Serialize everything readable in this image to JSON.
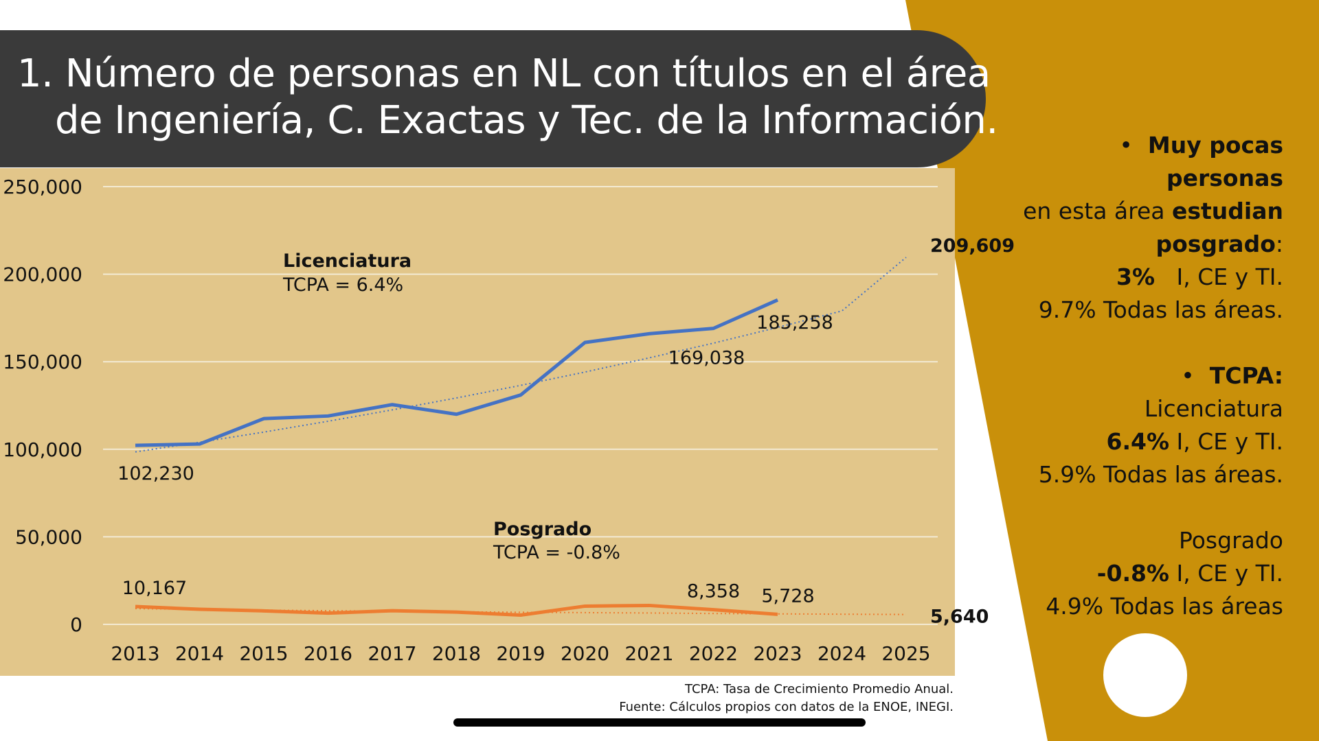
{
  "slide_title": {
    "line1": "1. Número de personas en NL con títulos en el área",
    "line2": "de Ingeniería, C. Exactas y Tec. de la Información."
  },
  "side_panel": {
    "bullet1_bold": "Muy pocas personas",
    "bullet1_line2_prefix": "en esta área ",
    "bullet1_line2_bold": "estudian",
    "bullet1_line3_bold": "posgrado",
    "bullet1_line3_suffix": ":",
    "pct_bold": "3%",
    "pct_text": "I, CE y TI.",
    "pct_all": "9.7% Todas las áreas.",
    "bullet2_bold": "TCPA:",
    "lic_label": "Licenciatura",
    "lic_bold": "6.4%",
    "lic_text": " I, CE y TI.",
    "lic_all": "5.9% Todas las áreas.",
    "pos_label": "Posgrado",
    "pos_bold": "-0.8%",
    "pos_text": " I, CE y TI.",
    "pos_all": "4.9% Todas las áreas"
  },
  "footnote": {
    "line1": "TCPA: Tasa de Crecimiento Promedio Anual.",
    "line2": "Fuente: Cálculos propios con datos de la ENOE, INEGI."
  },
  "colors": {
    "gold": "#c9900a",
    "chart_bg": "#e2c68a",
    "licenciatura": "#4472c4",
    "posgrado": "#ed7d31",
    "title_bar": "#3a3a3a"
  },
  "chart_data": {
    "type": "line",
    "title": "",
    "xlabel": "",
    "ylabel": "",
    "ylim": [
      0,
      250000
    ],
    "grid": true,
    "y_ticks": [
      0,
      50000,
      100000,
      150000,
      200000,
      250000
    ],
    "y_tick_labels": [
      "0",
      "50,000",
      "100,000",
      "150,000",
      "200,000",
      "250,000"
    ],
    "categories": [
      "2013",
      "2014",
      "2015",
      "2016",
      "2017",
      "2018",
      "2019",
      "2020",
      "2021",
      "2022",
      "2023",
      "2024",
      "2025"
    ],
    "series": [
      {
        "name": "Licenciatura",
        "color": "#4472c4",
        "values": [
          102230,
          103000,
          117500,
          119000,
          125500,
          120000,
          131000,
          161000,
          166000,
          169038,
          185258,
          null,
          null
        ],
        "trend": [
          98500,
          104000,
          109800,
          116000,
          122500,
          129300,
          136500,
          144100,
          152200,
          160600,
          169600,
          179000,
          209609
        ],
        "trend_label": "209,609",
        "annotation": "Licenciatura",
        "annotation_sub": "TCPA = 6.4%",
        "data_labels": [
          {
            "index": 0,
            "text": "102,230"
          },
          {
            "index": 9,
            "text": "169,038"
          },
          {
            "index": 10,
            "text": "185,258"
          }
        ]
      },
      {
        "name": "Posgrado",
        "color": "#ed7d31",
        "values": [
          10167,
          8600,
          7700,
          6400,
          7800,
          7000,
          5300,
          10400,
          10800,
          8358,
          5728,
          null,
          null
        ],
        "trend": [
          9000,
          8500,
          8100,
          7800,
          7500,
          7200,
          6900,
          6700,
          6500,
          6200,
          6000,
          5800,
          5640
        ],
        "trend_label": "5,640",
        "annotation": "Posgrado",
        "annotation_sub": "TCPA = -0.8%",
        "data_labels": [
          {
            "index": 0,
            "text": "10,167"
          },
          {
            "index": 9,
            "text": "8,358"
          },
          {
            "index": 10,
            "text": "5,728"
          }
        ]
      }
    ]
  }
}
